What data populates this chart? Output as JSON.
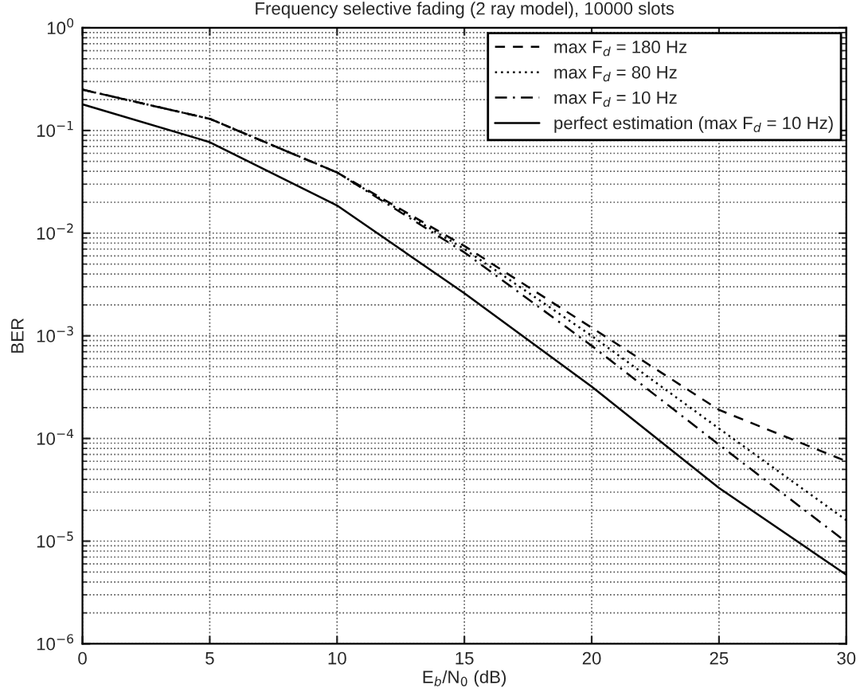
{
  "chart_data": {
    "type": "line",
    "title": "Frequency selective fading (2 ray model), 10000 slots",
    "xlabel": "E$_{b}$/N$_{0}$ (dB)",
    "ylabel": "BER",
    "x": [
      0,
      5,
      10,
      15,
      20,
      25,
      30
    ],
    "series": [
      {
        "name": "max F$_{d}$ = 180 Hz",
        "color": "#000000",
        "line_style": "dashed",
        "values": [
          0.25,
          0.13,
          0.039,
          0.0075,
          0.0012,
          0.00019,
          6e-05
        ]
      },
      {
        "name": "max F$_{d}$ = 80 Hz",
        "color": "#000000",
        "line_style": "dotted",
        "values": [
          0.25,
          0.13,
          0.039,
          0.007,
          0.001,
          0.000125,
          1.6e-05
        ]
      },
      {
        "name": "max F$_{d}$ = 10 Hz",
        "color": "#000000",
        "line_style": "dashdot",
        "values": [
          0.25,
          0.13,
          0.039,
          0.0065,
          0.0008,
          8.7e-05,
          9.8e-06
        ]
      },
      {
        "name": "perfect estimation (max F$_{d}$ = 10 Hz)",
        "color": "#000000",
        "line_style": "solid",
        "values": [
          0.18,
          0.077,
          0.0186,
          0.0026,
          0.00032,
          3.3e-05,
          4.7e-06
        ]
      }
    ],
    "log": "y",
    "xlim": [
      0,
      30
    ],
    "xticks": [
      0,
      5,
      10,
      15,
      20,
      25,
      30
    ],
    "ylim": [
      1e-06,
      1
    ],
    "yticks": [
      {
        "value": 1e-06,
        "label": "10$^{−6}$"
      },
      {
        "value": 1e-05,
        "label": "10$^{−5}$"
      },
      {
        "value": 0.0001,
        "label": "10$^{−4}$"
      },
      {
        "value": 0.001,
        "label": "10$^{−3}$"
      },
      {
        "value": 0.01,
        "label": "10$^{−2}$"
      },
      {
        "value": 0.1,
        "label": "10$^{−1}$"
      },
      {
        "value": 1,
        "label": "10$^{0}$"
      }
    ],
    "grid": true,
    "legend": "top right",
    "marker": "none"
  }
}
